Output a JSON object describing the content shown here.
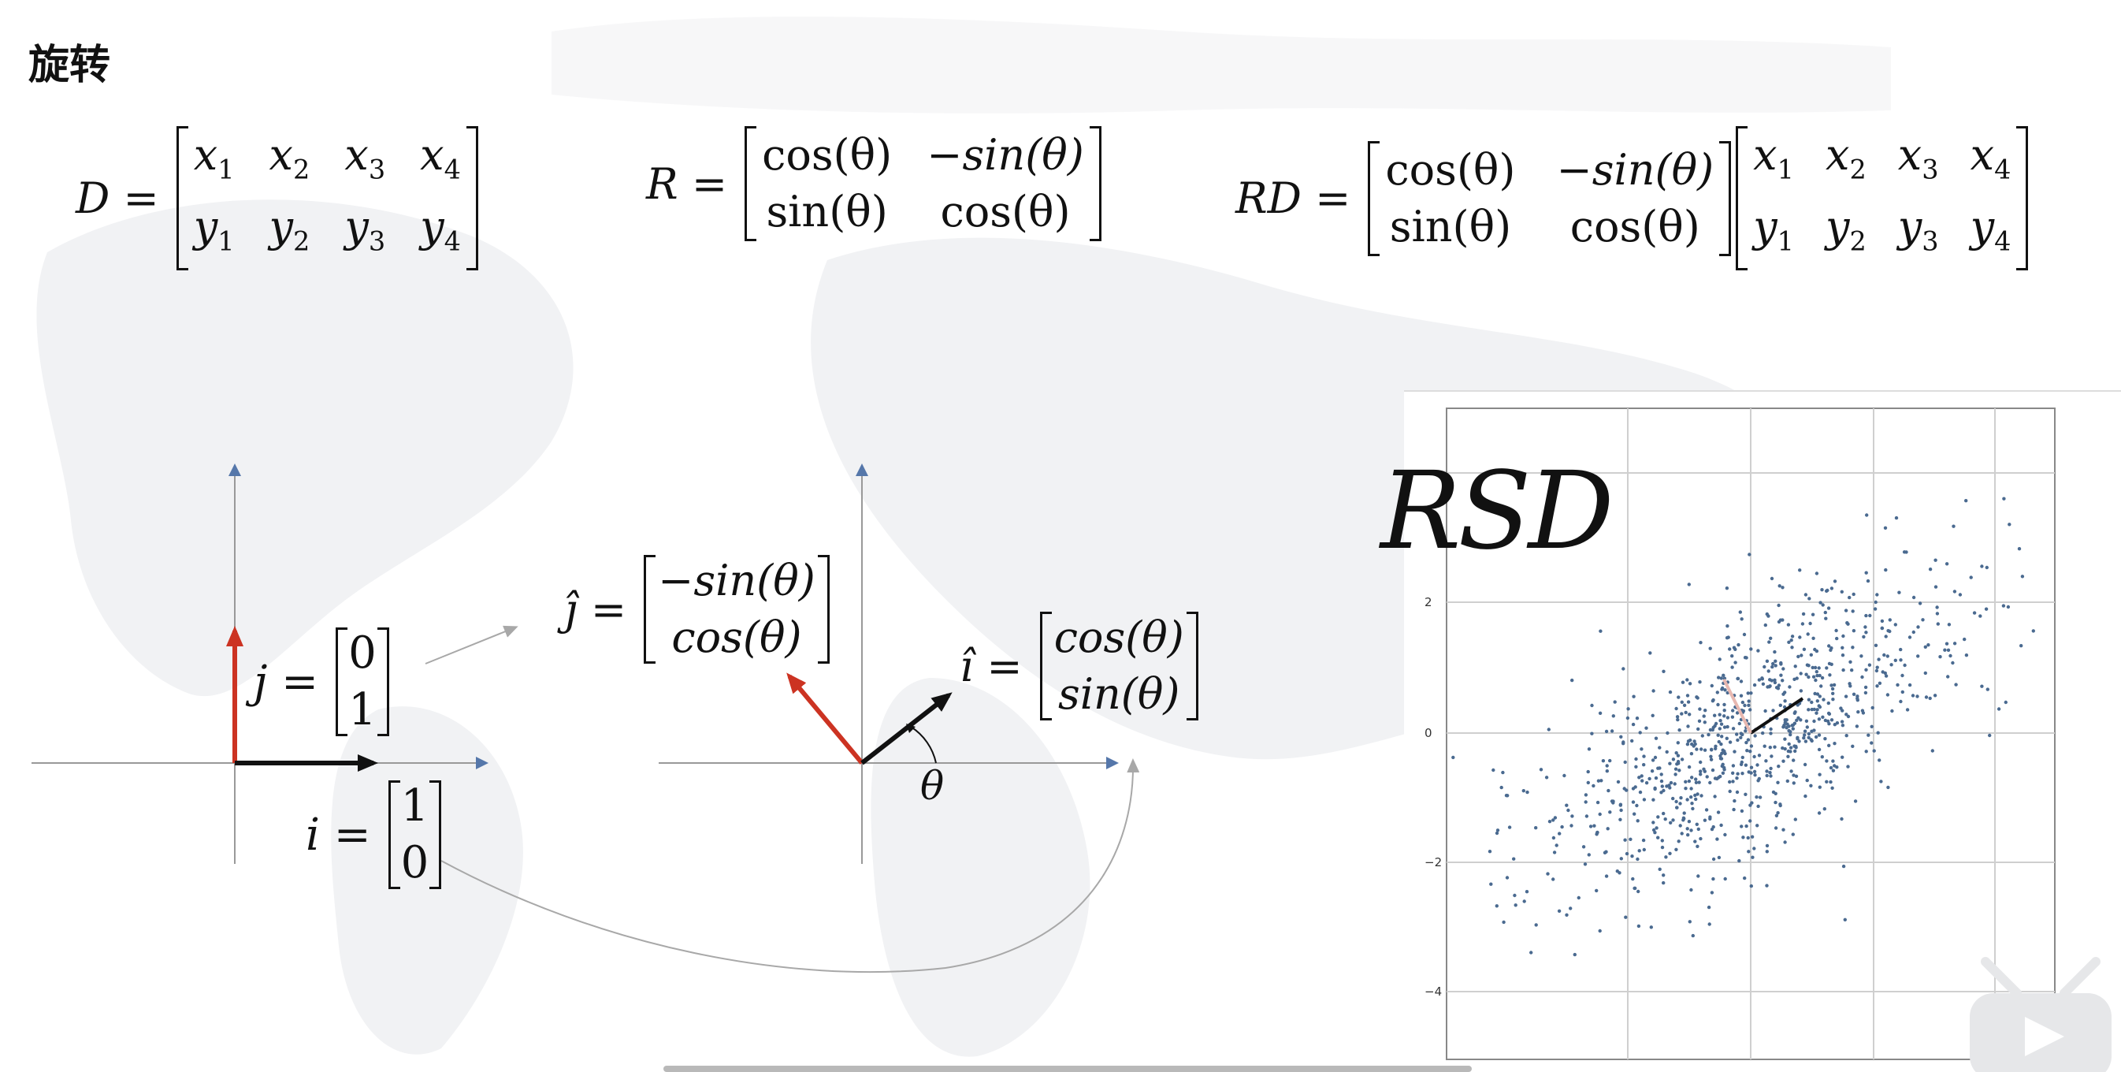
{
  "title": "旋转",
  "eq_d": {
    "lhs": "D =",
    "top": [
      "x1",
      "x2",
      "x3",
      "x4"
    ],
    "bottom": [
      "y1",
      "y2",
      "y3",
      "y4"
    ]
  },
  "eq_r": {
    "lhs": "R =",
    "m11": "cos(θ)",
    "m12": "−sin(θ)",
    "m21": "sin(θ)",
    "m22": "cos(θ)"
  },
  "eq_rd": {
    "lhs": "RD =",
    "m11": "cos(θ)",
    "m12": "−sin(θ)",
    "m21": "sin(θ)",
    "m22": "cos(θ)"
  },
  "basis": {
    "j_label": "j =",
    "j_top": "0",
    "j_bottom": "1",
    "i_label": "i =",
    "i_top": "1",
    "i_bottom": "0"
  },
  "rotated": {
    "jhat_label": "ĵ =",
    "jhat_top": "−sin(θ)",
    "jhat_bottom": "cos(θ)",
    "ihat_label": "î =",
    "ihat_top": "cos(θ)",
    "ihat_bottom": "sin(θ)",
    "theta": "θ"
  },
  "rsd": {
    "title": "RSD",
    "y_ticks": [
      "2",
      "0",
      "−2",
      "−4"
    ]
  },
  "colors": {
    "red_vector": "#cc3322",
    "black_vector": "#111111",
    "axis": "#5577aa",
    "points": "#4a6a90"
  }
}
